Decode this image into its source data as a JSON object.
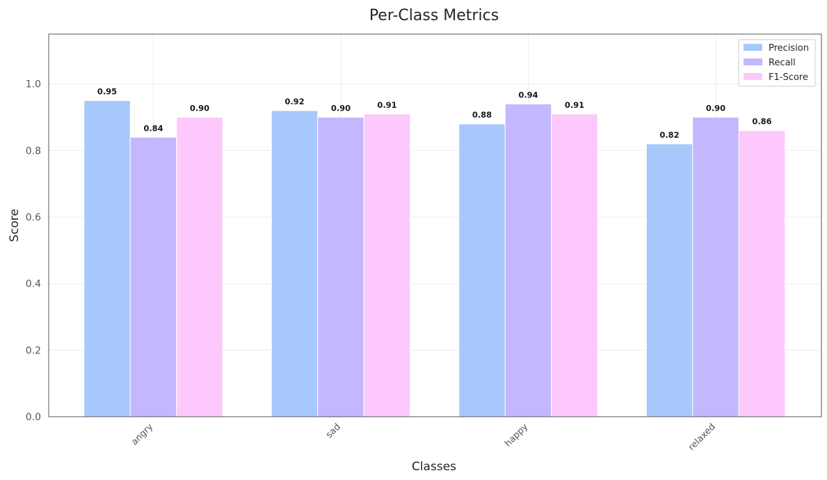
{
  "chart_data": {
    "type": "bar",
    "title": "Per-Class Metrics",
    "xlabel": "Classes",
    "ylabel": "Score",
    "categories": [
      "angry",
      "sad",
      "happy",
      "relaxed"
    ],
    "series": [
      {
        "name": "Precision",
        "color": "#a7c8fb",
        "values": [
          0.95,
          0.92,
          0.88,
          0.82
        ]
      },
      {
        "name": "Recall",
        "color": "#c3b8fd",
        "values": [
          0.84,
          0.9,
          0.94,
          0.9
        ]
      },
      {
        "name": "F1-Score",
        "color": "#fdc9fd",
        "values": [
          0.9,
          0.91,
          0.91,
          0.86
        ]
      }
    ],
    "ylim": [
      0,
      1.15
    ],
    "yticks": [
      "0.0",
      "0.2",
      "0.4",
      "0.6",
      "0.8",
      "1.0"
    ],
    "grid": true,
    "legend_position": "top-right"
  }
}
